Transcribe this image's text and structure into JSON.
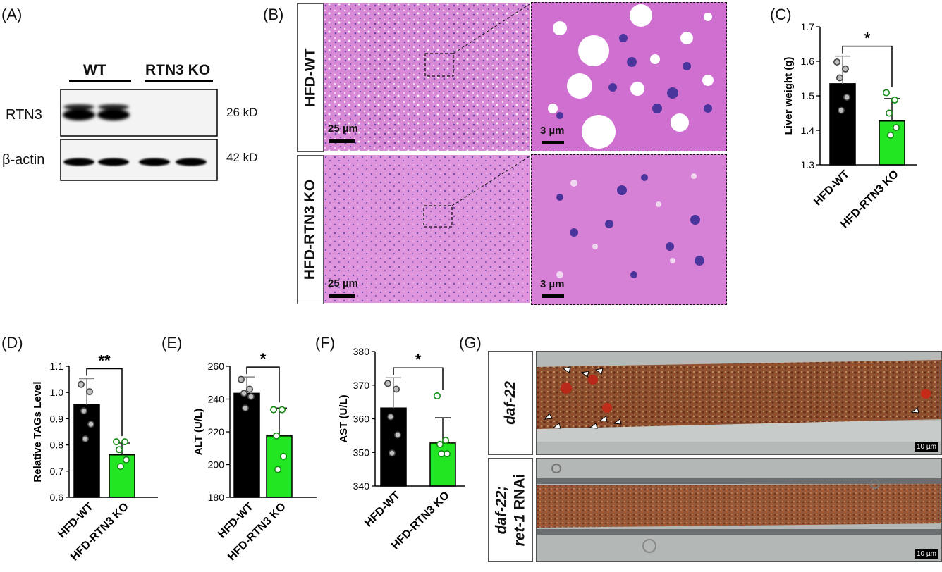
{
  "panels": {
    "A": {
      "label": "(A)",
      "groups": [
        "WT",
        "RTN3 KO"
      ],
      "rows": [
        {
          "protein": "RTN3",
          "size": "26 kD"
        },
        {
          "protein": "β-actin",
          "size": "42 kD"
        }
      ]
    },
    "B": {
      "label": "(B)",
      "rows": [
        "HFD-WT",
        "HFD-RTN3 KO"
      ],
      "scale_low": "25 µm",
      "scale_high": "3 µm"
    },
    "C": {
      "label": "(C)"
    },
    "D": {
      "label": "(D)"
    },
    "E": {
      "label": "(E)"
    },
    "F": {
      "label": "(F)"
    },
    "G": {
      "label": "(G)",
      "row1": "daf-22",
      "row2_line1": "daf-22;",
      "row2_line2_italic": "ret-1",
      "row2_line2_plain": " RNAi",
      "scale": "10 µm"
    }
  },
  "colors": {
    "wt_bar": "#000000",
    "ko_bar": "#22e622",
    "he_pink": "#d985d8",
    "he_nuclei": "#4b3c9e",
    "worm": "#8a3a1c"
  },
  "chart_data": [
    {
      "id": "C",
      "type": "bar",
      "categories": [
        "HFD-WT",
        "HFD-RTN3 KO"
      ],
      "values": [
        1.535,
        1.427
      ],
      "errors": [
        0.08,
        0.065
      ],
      "points": [
        [
          1.598,
          1.578,
          1.552,
          1.496,
          1.458
        ],
        [
          1.509,
          1.488,
          1.45,
          1.408,
          1.386
        ]
      ],
      "ylabel": "Liver weight (g)",
      "ylim": [
        1.3,
        1.7
      ],
      "ticks": [
        1.3,
        1.4,
        1.5,
        1.6,
        1.7
      ],
      "tick_labels": [
        "1.3",
        "1.4",
        "1.5",
        "1.6",
        "1.7"
      ],
      "significance": "*"
    },
    {
      "id": "D",
      "type": "bar",
      "categories": [
        "HFD-WT",
        "HFD-RTN3 KO"
      ],
      "values": [
        0.953,
        0.762
      ],
      "errors": [
        0.1,
        0.045
      ],
      "points": [
        [
          1.031,
          1.003,
          0.93,
          0.879,
          0.823
        ],
        [
          0.812,
          0.812,
          0.782,
          0.743,
          0.718
        ]
      ],
      "ylabel": "Relative TAGs Level",
      "ylim": [
        0.6,
        1.1
      ],
      "ticks": [
        0.6,
        0.7,
        0.8,
        0.9,
        1.0,
        1.1
      ],
      "tick_labels": [
        "0.6",
        "0.7",
        "0.8",
        "0.9",
        "1.0",
        "1.1"
      ],
      "significance": "**"
    },
    {
      "id": "E",
      "type": "bar",
      "categories": [
        "HFD-WT",
        "HFD-RTN3 KO"
      ],
      "values": [
        243.5,
        217.5
      ],
      "errors": [
        10,
        17
      ],
      "points": [
        [
          252,
          246,
          243.5,
          241.5,
          234.5
        ],
        [
          233.5,
          233.5,
          217.5,
          205,
          197
        ]
      ],
      "ylabel": "ALT (U/L)",
      "ylim": [
        180,
        260
      ],
      "ticks": [
        180,
        200,
        220,
        240,
        260
      ],
      "tick_labels": [
        "180",
        "200",
        "220",
        "240",
        "260"
      ],
      "significance": "*"
    },
    {
      "id": "F",
      "type": "bar",
      "categories": [
        "HFD-WT",
        "HFD-RTN3 KO"
      ],
      "values": [
        363.2,
        352.8
      ],
      "errors": [
        9,
        7.5
      ],
      "points": [
        [
          370.5,
          368.8,
          360.6,
          355.2,
          349.8
        ],
        [
          366.8,
          353.6,
          352.4,
          349.6,
          349.6
        ]
      ],
      "ylabel": "AST (U/L)",
      "ylim": [
        340,
        380
      ],
      "ticks": [
        340,
        350,
        360,
        370,
        380
      ],
      "tick_labels": [
        "340",
        "350",
        "360",
        "370",
        "380"
      ],
      "significance": "*"
    }
  ]
}
